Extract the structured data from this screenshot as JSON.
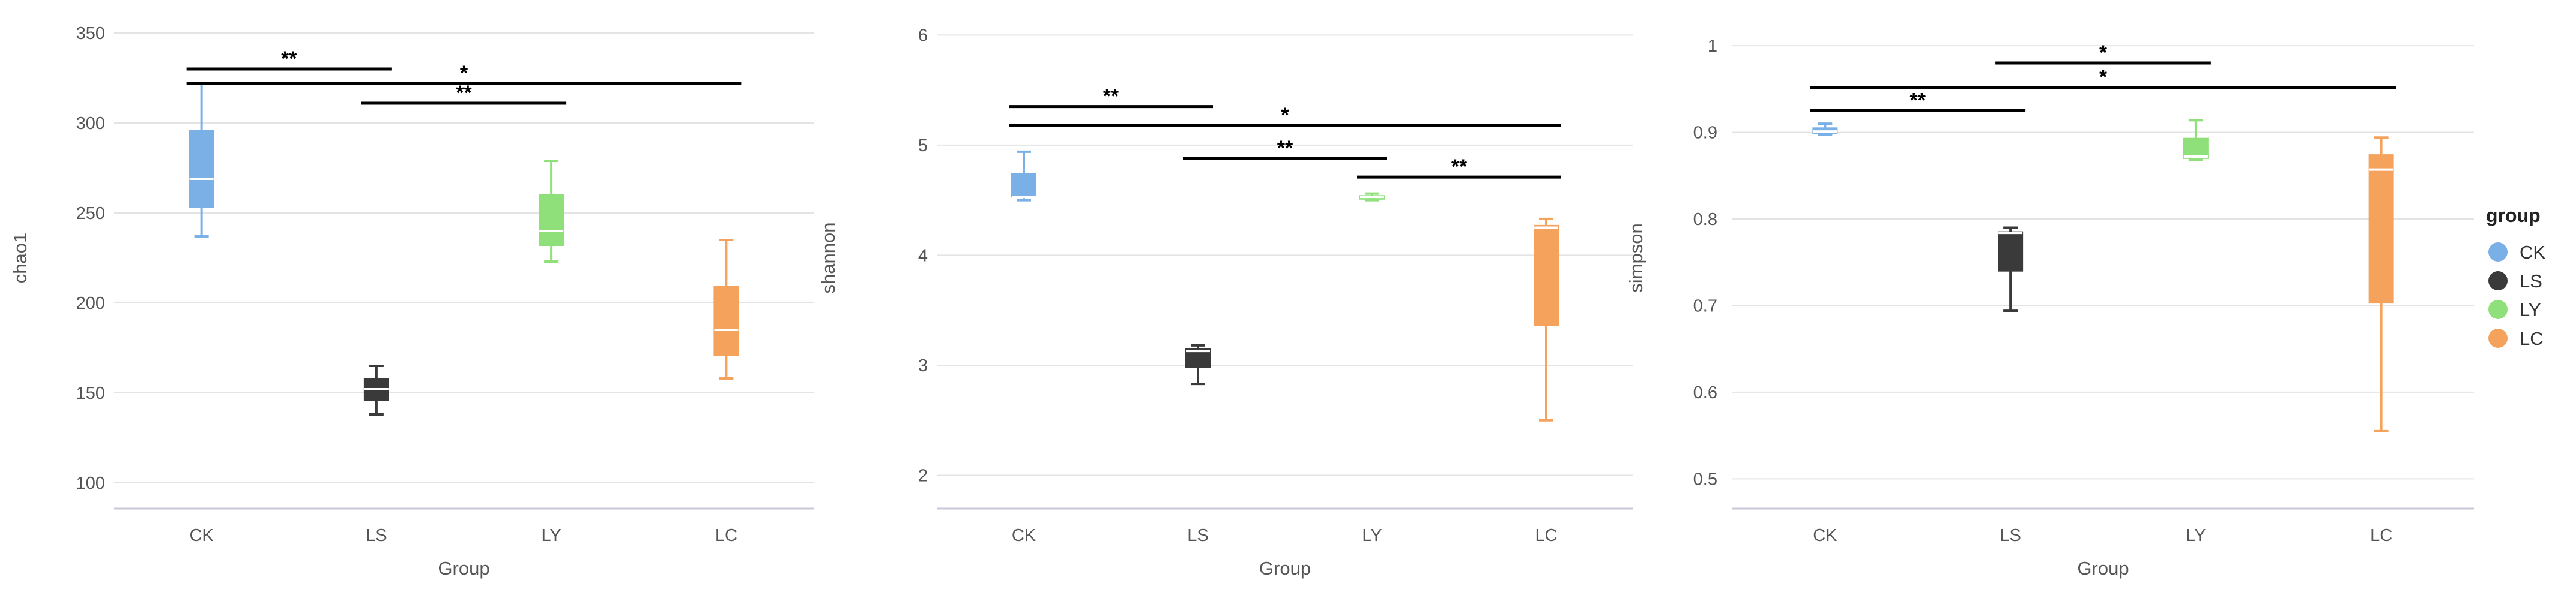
{
  "colors": {
    "CK": "#7bb0e6",
    "LS": "#3a3a3a",
    "LY": "#8fe07a",
    "LC": "#f4a25c",
    "grid": "#e4e4e4",
    "axis": "#c8c8d8",
    "text": "#555555",
    "bracket": "#000000"
  },
  "legend": {
    "title": "group",
    "placement": "right",
    "items": [
      {
        "key": "CK",
        "label": "CK"
      },
      {
        "key": "LS",
        "label": "LS"
      },
      {
        "key": "LY",
        "label": "LY"
      },
      {
        "key": "LC",
        "label": "LC"
      }
    ]
  },
  "chart_data": [
    {
      "type": "box",
      "xlabel": "Group",
      "ylabel": "chao1",
      "categories": [
        "CK",
        "LS",
        "LY",
        "LC"
      ],
      "ylim": [
        95,
        355
      ],
      "yticks": [
        100,
        150,
        200,
        250,
        300,
        350
      ],
      "ytick_labels": [
        "100",
        "150",
        "200",
        "250",
        "300",
        "350"
      ],
      "grid": true,
      "boxes": [
        {
          "group": "CK",
          "min": 237,
          "q1": 253,
          "median": 269,
          "q3": 296,
          "max": 322
        },
        {
          "group": "LS",
          "min": 138,
          "q1": 146,
          "median": 152,
          "q3": 158,
          "max": 165
        },
        {
          "group": "LY",
          "min": 223,
          "q1": 232,
          "median": 240,
          "q3": 260,
          "max": 279
        },
        {
          "group": "LC",
          "min": 158,
          "q1": 171,
          "median": 185,
          "q3": 209,
          "max": 235
        }
      ],
      "significance": [
        {
          "from": "CK",
          "to": "LS",
          "label": "**",
          "y": 330
        },
        {
          "from": "CK",
          "to": "LC",
          "label": "*",
          "y": 322
        },
        {
          "from": "LS",
          "to": "LY",
          "label": "**",
          "y": 311
        }
      ]
    },
    {
      "type": "box",
      "xlabel": "Group",
      "ylabel": "shannon",
      "categories": [
        "CK",
        "LS",
        "LY",
        "LC"
      ],
      "ylim": [
        1.85,
        6.1
      ],
      "yticks": [
        2,
        3,
        4,
        5,
        6
      ],
      "ytick_labels": [
        "2",
        "3",
        "4",
        "5",
        "6"
      ],
      "grid": true,
      "boxes": [
        {
          "group": "CK",
          "min": 4.5,
          "q1": 4.53,
          "median": 4.53,
          "q3": 4.74,
          "max": 4.94
        },
        {
          "group": "LS",
          "min": 2.83,
          "q1": 2.98,
          "median": 3.13,
          "q3": 3.15,
          "max": 3.18
        },
        {
          "group": "LY",
          "min": 4.5,
          "q1": 4.51,
          "median": 4.53,
          "q3": 4.54,
          "max": 4.56
        },
        {
          "group": "LC",
          "min": 2.5,
          "q1": 3.36,
          "median": 4.25,
          "q3": 4.27,
          "max": 4.33
        }
      ],
      "significance": [
        {
          "from": "CK",
          "to": "LS",
          "label": "**",
          "y": 5.35
        },
        {
          "from": "CK",
          "to": "LC",
          "label": "*",
          "y": 5.18
        },
        {
          "from": "LS",
          "to": "LY",
          "label": "**",
          "y": 4.88
        },
        {
          "from": "LY",
          "to": "LC",
          "label": "**",
          "y": 4.71
        }
      ]
    },
    {
      "type": "box",
      "xlabel": "Group",
      "ylabel": "simpson",
      "categories": [
        "CK",
        "LS",
        "LY",
        "LC"
      ],
      "ylim": [
        0.485,
        1.025
      ],
      "yticks": [
        0.5,
        0.6,
        0.7,
        0.8,
        0.9,
        1
      ],
      "ytick_labels": [
        "0.5",
        "0.6",
        "0.7",
        "0.8",
        "0.9",
        "1"
      ],
      "grid": true,
      "boxes": [
        {
          "group": "CK",
          "min": 0.897,
          "q1": 0.899,
          "median": 0.901,
          "q3": 0.905,
          "max": 0.91
        },
        {
          "group": "LS",
          "min": 0.694,
          "q1": 0.74,
          "median": 0.784,
          "q3": 0.785,
          "max": 0.79
        },
        {
          "group": "LY",
          "min": 0.868,
          "q1": 0.87,
          "median": 0.872,
          "q3": 0.893,
          "max": 0.914
        },
        {
          "group": "LC",
          "min": 0.555,
          "q1": 0.703,
          "median": 0.857,
          "q3": 0.874,
          "max": 0.894
        }
      ],
      "significance": [
        {
          "from": "LS",
          "to": "LY",
          "label": "*",
          "y": 0.98
        },
        {
          "from": "CK",
          "to": "LC",
          "label": "*",
          "y": 0.952
        },
        {
          "from": "CK",
          "to": "LS",
          "label": "**",
          "y": 0.925
        }
      ]
    }
  ]
}
